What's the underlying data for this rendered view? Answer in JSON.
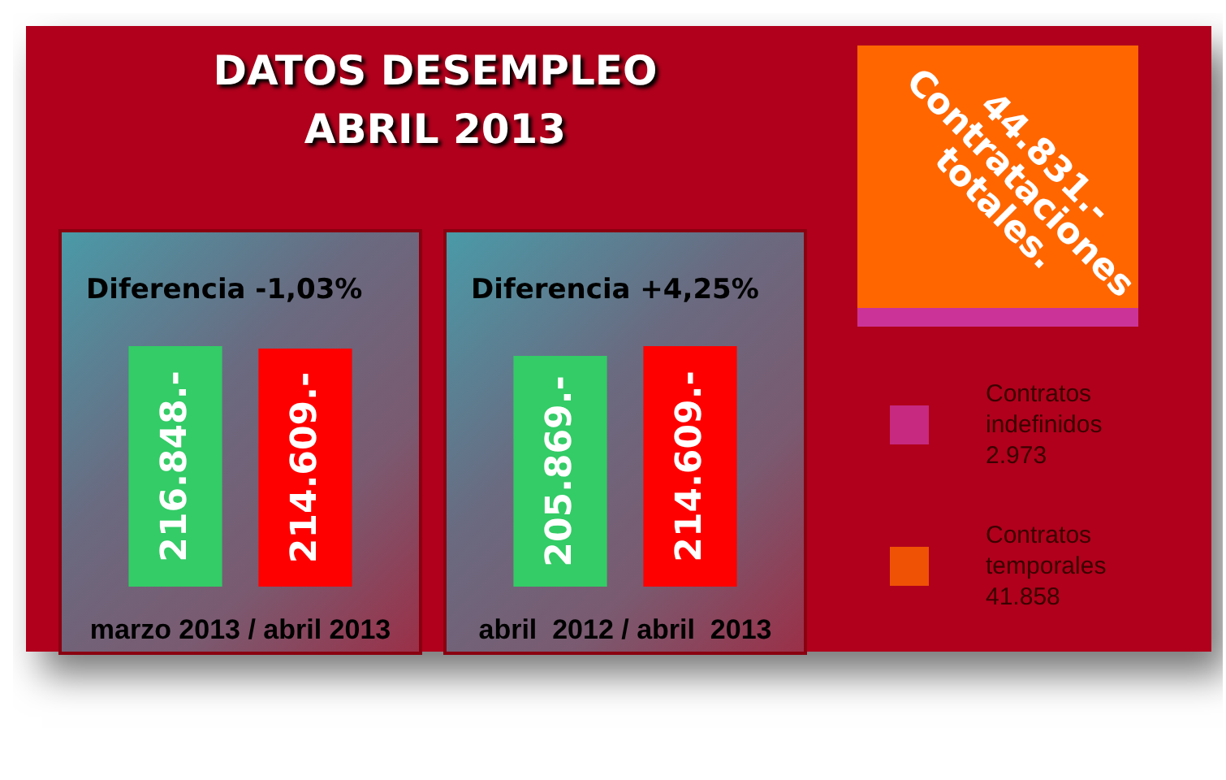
{
  "chart_data": [
    {
      "type": "bar",
      "title": "DATOS DESEMPLEO\nABRIL 2013",
      "subtitle": "Diferencia -1,03%",
      "categories": [
        null,
        null
      ],
      "values": [
        216848,
        214609
      ],
      "colors": [
        "#33cc66",
        "#ff0000"
      ],
      "value_labels": [
        "216.848.-",
        "214.609.-"
      ],
      "xlabel": "marzo 2013 / abril 2013"
    },
    {
      "type": "bar",
      "subtitle": "Diferencia +4,25%",
      "categories": [
        null,
        null
      ],
      "values": [
        205869,
        214609
      ],
      "colors": [
        "#33cc66",
        "#ff0000"
      ],
      "value_labels": [
        "205.869.-",
        "214.609.-"
      ],
      "xlabel": "abril  2012 / abril  2013"
    },
    {
      "type": "other",
      "title": "44.831.-\nContrataciones\ntotales.",
      "legend": "bottom",
      "series": [
        {
          "name": "Contratos indefinidos",
          "color": "#cc3399",
          "values": [
            2973
          ],
          "value_labels": [
            "2.973"
          ]
        },
        {
          "name": "Contratos temporales",
          "color": "#ff6600",
          "values": [
            41858
          ],
          "value_labels": [
            "41.858"
          ]
        }
      ]
    }
  ]
}
